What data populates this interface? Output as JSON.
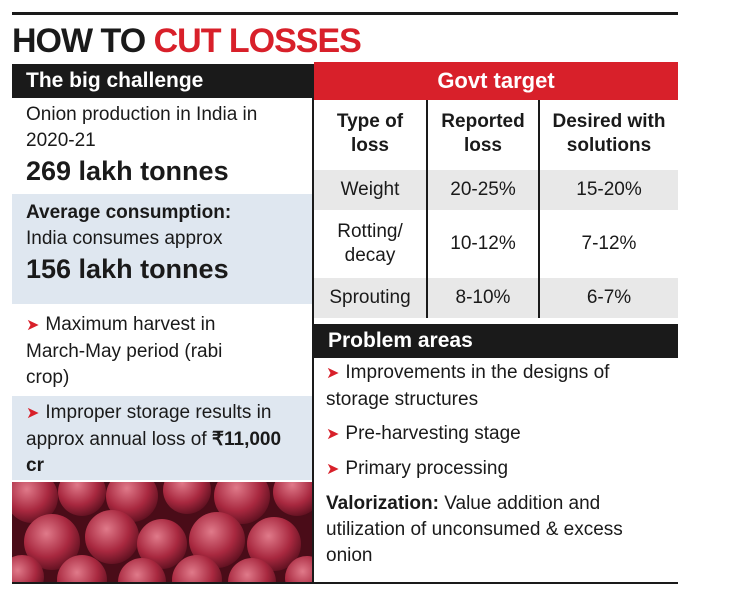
{
  "title": {
    "part1": "HOW TO",
    "part2": "CUT LOSSES"
  },
  "big_challenge": {
    "heading": "The big challenge",
    "production": {
      "text": "Onion production in India in 2020-21",
      "value": "269 lakh tonnes"
    },
    "consumption": {
      "label": "Average consumption:",
      "text": "India consumes approx",
      "value": "156 lakh tonnes"
    },
    "harvest": "Maximum harvest in March-May period (rabi crop)",
    "storage": {
      "text": "Improper storage results in approx annual loss of",
      "value": "₹11,000 cr"
    }
  },
  "govt_target": {
    "heading": "Govt target",
    "table": {
      "columns": [
        "Type of loss",
        "Reported loss",
        "Desired with solutions"
      ],
      "rows": [
        [
          "Weight",
          "20-25%",
          "15-20%"
        ],
        [
          "Rotting/ decay",
          "10-12%",
          "7-12%"
        ],
        [
          "Sprouting",
          "8-10%",
          "6-7%"
        ]
      ]
    }
  },
  "problem_areas": {
    "heading": "Problem areas",
    "items": [
      "Improvements in the designs of storage structures",
      "Pre-harvesting stage",
      "Primary processing"
    ],
    "valorization": {
      "label": "Valorization:",
      "text": "Value addition and utilization of unconsumed & excess onion"
    }
  }
}
